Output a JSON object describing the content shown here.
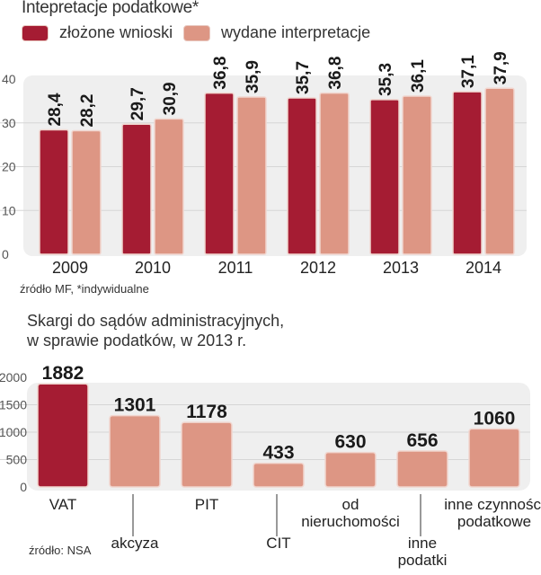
{
  "colors": {
    "dark_red": "#a51c33",
    "salmon": "#dd9684",
    "plot_bg": "#efefef",
    "grid": "#d6d6d6"
  },
  "chart_data": [
    {
      "type": "bar",
      "title": "Intepretacje podatkowe*",
      "categories": [
        "2009",
        "2010",
        "2011",
        "2012",
        "2013",
        "2014"
      ],
      "series": [
        {
          "name": "złożone wnioski",
          "values": [
            28.4,
            29.7,
            36.8,
            35.7,
            35.3,
            37.1
          ],
          "labels": [
            "28,4",
            "29,7",
            "36,8",
            "35,7",
            "35,3",
            "37,1"
          ]
        },
        {
          "name": "wydane interpretacje",
          "values": [
            28.2,
            30.9,
            35.9,
            36.8,
            36.1,
            37.9
          ],
          "labels": [
            "28,2",
            "30,9",
            "35,9",
            "36,8",
            "36,1",
            "37,9"
          ]
        }
      ],
      "yticks": [
        "0",
        "10",
        "20",
        "30",
        "40"
      ],
      "ylim": [
        0,
        40
      ],
      "grid": true,
      "legend": "top-left",
      "source": "źródło MF, *indywidualne"
    },
    {
      "type": "bar",
      "title": "Skargi do sądów administracyjnych, w sprawie podatków, w 2013 r.",
      "title_lines": [
        "Skargi do sądów administracyjnych,",
        "w sprawie podatków, w 2013 r."
      ],
      "categories": [
        "VAT",
        "akcyza",
        "PIT",
        "CIT",
        "od nieruchomości",
        "inne podatki",
        "inne czynności podatkowe"
      ],
      "category_lines": [
        [
          "VAT"
        ],
        [
          "akcyza"
        ],
        [
          "PIT"
        ],
        [
          "CIT"
        ],
        [
          "od",
          "nieruchomości"
        ],
        [
          "inne",
          "podatki"
        ],
        [
          "inne czynności",
          "podatkowe"
        ]
      ],
      "values": [
        1882,
        1301,
        1178,
        433,
        630,
        656,
        1060
      ],
      "labels": [
        "1882",
        "1301",
        "1178",
        "433",
        "630",
        "656",
        "1060"
      ],
      "highlight_index": 0,
      "yticks": [
        "0",
        "500",
        "1000",
        "1500",
        "2000"
      ],
      "ylim": [
        0,
        2000
      ],
      "grid": true,
      "source": "źródło: NSA"
    }
  ]
}
